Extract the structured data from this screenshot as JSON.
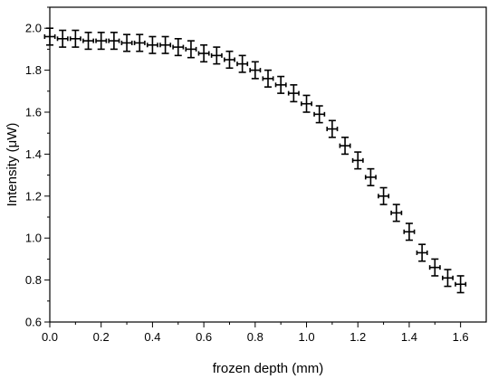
{
  "chart_data": {
    "type": "scatter",
    "title": "",
    "xlabel": "frozen depth (mm)",
    "ylabel": "Intensity (μW)",
    "xlim": [
      0.0,
      1.7
    ],
    "ylim": [
      0.6,
      2.1
    ],
    "x_ticks": [
      "0.0",
      "0.2",
      "0.4",
      "0.6",
      "0.8",
      "1.0",
      "1.2",
      "1.4",
      "1.6"
    ],
    "y_ticks": [
      "0.6",
      "0.8",
      "1.0",
      "1.2",
      "1.4",
      "1.6",
      "1.8",
      "2.0"
    ],
    "grid": false,
    "marker": "errorbar-cross",
    "color": "#000000",
    "x_error": 0.02,
    "y_error": 0.04,
    "series": [
      {
        "x": [
          0.0,
          0.05,
          0.1,
          0.15,
          0.2,
          0.25,
          0.3,
          0.35,
          0.4,
          0.45,
          0.5,
          0.55,
          0.6,
          0.65,
          0.7,
          0.75,
          0.8,
          0.85,
          0.9,
          0.95,
          1.0,
          1.05,
          1.1,
          1.15,
          1.2,
          1.25,
          1.3,
          1.35,
          1.4,
          1.45,
          1.5,
          1.55,
          1.6
        ],
        "y": [
          1.96,
          1.95,
          1.95,
          1.94,
          1.94,
          1.94,
          1.93,
          1.93,
          1.92,
          1.92,
          1.91,
          1.9,
          1.88,
          1.87,
          1.85,
          1.83,
          1.8,
          1.76,
          1.73,
          1.69,
          1.64,
          1.59,
          1.52,
          1.44,
          1.37,
          1.29,
          1.2,
          1.12,
          1.03,
          0.93,
          0.86,
          0.81,
          0.78
        ]
      }
    ]
  }
}
